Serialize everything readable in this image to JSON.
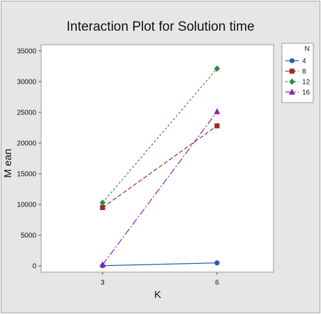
{
  "chart_data": {
    "type": "line",
    "title": "Interaction Plot for Solution time",
    "xlabel": "K",
    "ylabel": "M ean",
    "categories": [
      "3",
      "6"
    ],
    "ylim": [
      -1000,
      36000
    ],
    "yticks": [
      0,
      5000,
      10000,
      15000,
      20000,
      25000,
      30000,
      35000
    ],
    "ytick_labels": [
      "0",
      "5000",
      "10000",
      "15000",
      "20000",
      "25000",
      "30000",
      "35000"
    ],
    "grid": false,
    "legend": {
      "title": "N",
      "placement": "right"
    },
    "series": [
      {
        "name": "4",
        "values": [
          50,
          500
        ],
        "color": "#1f5fae",
        "dash": "",
        "marker": "circle"
      },
      {
        "name": "8",
        "values": [
          9500,
          22800
        ],
        "color": "#9e2a2a",
        "dash": "6 3",
        "marker": "square"
      },
      {
        "name": "12",
        "values": [
          10300,
          32100
        ],
        "color": "#2e8b3a",
        "dash": "3 3",
        "marker": "diamond"
      },
      {
        "name": "16",
        "values": [
          200,
          25100
        ],
        "color": "#8a1fb0",
        "dash": "10 3 2 3",
        "marker": "triangle"
      }
    ]
  }
}
